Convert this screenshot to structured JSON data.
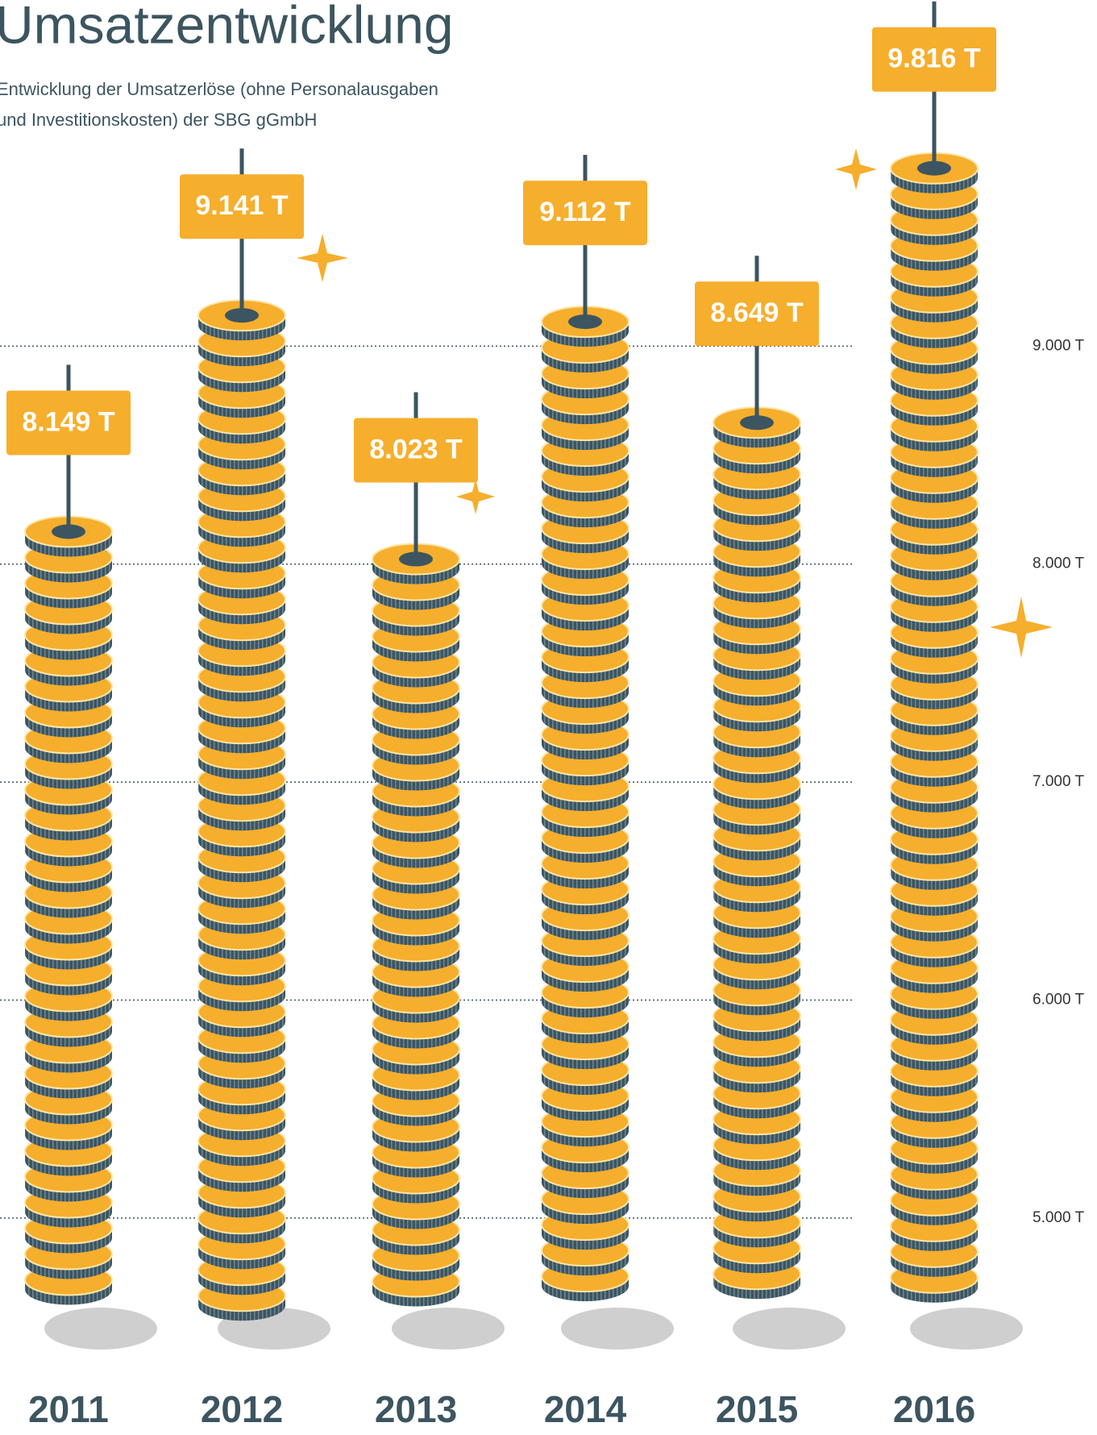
{
  "chart_data": {
    "type": "coin-stack",
    "title": "Umsatzentwicklung",
    "subtitle": [
      "Entwicklung der Umsatzerlöse (ohne Personalausgaben",
      "und Investitionskosten) der SBG gGmbH"
    ],
    "categories": [
      "2011",
      "2012",
      "2013",
      "2014",
      "2015",
      "2016"
    ],
    "values": [
      8149,
      9141,
      8023,
      9112,
      8649,
      9816
    ],
    "value_labels": [
      "8.149 T",
      "9.141 T",
      "8.023 T",
      "9.112 T",
      "8.649 T",
      "9.816 T"
    ],
    "color": "#f6ae2d",
    "edge_color": "#3c5560",
    "ylim": [
      4500,
      10000
    ],
    "yticks": [
      {
        "value": 5000,
        "label": "5.000 T"
      },
      {
        "value": 6000,
        "label": "6.000 T"
      },
      {
        "value": 7000,
        "label": "7.000 T"
      },
      {
        "value": 8000,
        "label": "8.000 T"
      },
      {
        "value": 9000,
        "label": "9.000 T"
      }
    ],
    "grid": true
  }
}
